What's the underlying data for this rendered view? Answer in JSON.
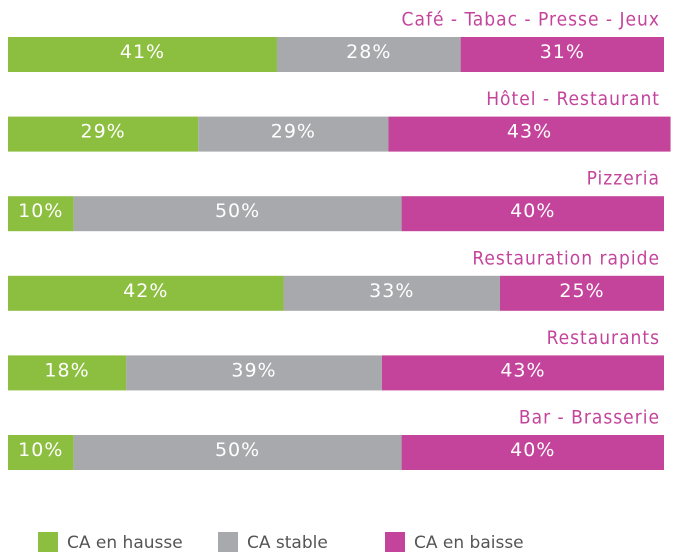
{
  "chart_data": {
    "type": "stacked-bar-horizontal",
    "categories": [
      "Café - Tabac - Presse - Jeux",
      "Hôtel - Restaurant",
      "Pizzeria",
      "Restauration rapide",
      "Restaurants",
      "Bar - Brasserie"
    ],
    "xlim": [
      0,
      100
    ],
    "series": [
      {
        "name": "CA en hausse",
        "color": "#8cbf3f",
        "values": [
          41,
          29,
          10,
          42,
          18,
          10
        ],
        "value_labels": [
          "41%",
          "29%",
          "10%",
          "42%",
          "18%",
          "10%"
        ]
      },
      {
        "name": "CA stable",
        "color": "#a7a9ac",
        "values": [
          28,
          29,
          50,
          33,
          39,
          50
        ],
        "value_labels": [
          "28%",
          "29%",
          "50%",
          "33%",
          "39%",
          "50%"
        ]
      },
      {
        "name": "CA en baisse",
        "color": "#c4449b",
        "values": [
          31,
          43,
          40,
          25,
          43,
          40
        ],
        "value_labels": [
          "31%",
          "43%",
          "40%",
          "25%",
          "43%",
          "40%"
        ]
      }
    ]
  }
}
